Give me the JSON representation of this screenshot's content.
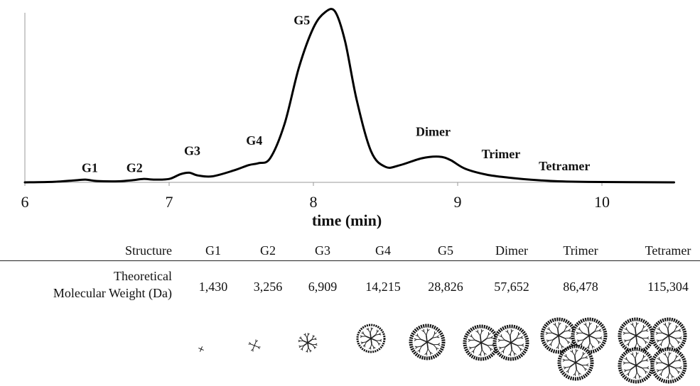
{
  "chart_data": {
    "type": "line",
    "title": "",
    "xlabel": "time (min)",
    "ylabel": "",
    "xlim": [
      6,
      10.5
    ],
    "ylim": [
      0,
      1.0
    ],
    "xticks": [
      6,
      7,
      8,
      9,
      10
    ],
    "xtick_labels": [
      "6",
      "7",
      "8",
      "9",
      "10"
    ],
    "grid": false,
    "series": [
      {
        "x": [
          6.0,
          6.2,
          6.35,
          6.42,
          6.5,
          6.65,
          6.75,
          6.82,
          6.9,
          7.0,
          7.08,
          7.14,
          7.2,
          7.3,
          7.45,
          7.55,
          7.62,
          7.7,
          7.8,
          7.9,
          8.0,
          8.08,
          8.15,
          8.22,
          8.3,
          8.4,
          8.5,
          8.6,
          8.75,
          8.87,
          8.95,
          9.05,
          9.2,
          9.35,
          9.5,
          9.7,
          10.0,
          10.5
        ],
        "y": [
          0.0,
          0.003,
          0.012,
          0.016,
          0.008,
          0.006,
          0.013,
          0.02,
          0.016,
          0.02,
          0.048,
          0.056,
          0.04,
          0.035,
          0.07,
          0.1,
          0.112,
          0.14,
          0.34,
          0.67,
          0.9,
          0.99,
          0.995,
          0.82,
          0.48,
          0.18,
          0.09,
          0.1,
          0.14,
          0.15,
          0.13,
          0.08,
          0.045,
          0.028,
          0.016,
          0.006,
          0.002,
          0.0
        ]
      }
    ],
    "peak_annotations": [
      {
        "text": "G1",
        "x": 6.45,
        "y": 0.06
      },
      {
        "text": "G2",
        "x": 6.76,
        "y": 0.06
      },
      {
        "text": "G3",
        "x": 7.16,
        "y": 0.16
      },
      {
        "text": "G4",
        "x": 7.59,
        "y": 0.22
      },
      {
        "text": "G5",
        "x": 7.92,
        "y": 0.92
      },
      {
        "text": "Dimer",
        "x": 8.83,
        "y": 0.27
      },
      {
        "text": "Trimer",
        "x": 9.3,
        "y": 0.14
      },
      {
        "text": "Tetramer",
        "x": 9.74,
        "y": 0.07
      }
    ]
  },
  "table": {
    "structure_label": "Structure",
    "mw_label_line1": "Theoretical",
    "mw_label_line2": "Molecular Weight (Da)",
    "columns": [
      {
        "name": "G1",
        "mw": "1,430"
      },
      {
        "name": "G2",
        "mw": "3,256"
      },
      {
        "name": "G3",
        "mw": "6,909"
      },
      {
        "name": "G4",
        "mw": "14,215"
      },
      {
        "name": "G5",
        "mw": "28,826"
      },
      {
        "name": "Dimer",
        "mw": "57,652"
      },
      {
        "name": "Trimer",
        "mw": "86,478"
      },
      {
        "name": "Tetramer",
        "mw": "115,304"
      }
    ]
  },
  "structure_icons": [
    {
      "name": "G1-dendrimer-icon",
      "units": 1,
      "generation": 1
    },
    {
      "name": "G2-dendrimer-icon",
      "units": 1,
      "generation": 2
    },
    {
      "name": "G3-dendrimer-icon",
      "units": 1,
      "generation": 3
    },
    {
      "name": "G4-dendrimer-icon",
      "units": 1,
      "generation": 4
    },
    {
      "name": "G5-dendrimer-icon",
      "units": 1,
      "generation": 5
    },
    {
      "name": "dimer-dendrimer-icon",
      "units": 2,
      "generation": 5
    },
    {
      "name": "trimer-dendrimer-icon",
      "units": 3,
      "generation": 5
    },
    {
      "name": "tetramer-dendrimer-icon",
      "units": 4,
      "generation": 5
    }
  ]
}
